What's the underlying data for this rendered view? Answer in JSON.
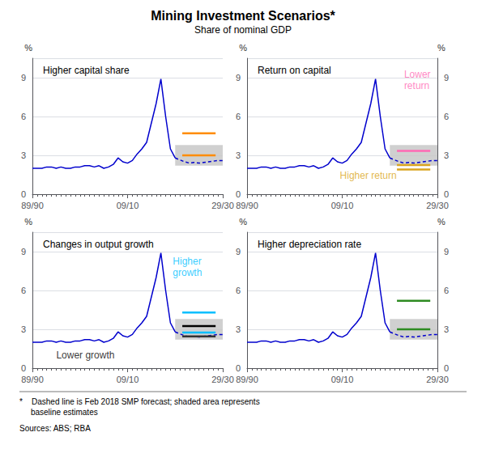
{
  "title": "Mining Investment Scenarios*",
  "subtitle": "Share of nominal GDP",
  "footnote": "*    Dashed line is Feb 2018 SMP forecast; shaded area represents\n     baseline estimates",
  "sources": "Sources: ABS; RBA",
  "chart_data": [
    {
      "type": "line",
      "title": "Higher capital share",
      "x": [
        0,
        1,
        2,
        3,
        4,
        5,
        6,
        7,
        8,
        9,
        10,
        11,
        12,
        13,
        14,
        15,
        16,
        17,
        18,
        19,
        20,
        21,
        22,
        23,
        24,
        25,
        26,
        27,
        28,
        29,
        30,
        31,
        32,
        33,
        34,
        35,
        36,
        37,
        38,
        39,
        40
      ],
      "series": [
        {
          "color": "#0000CD",
          "line_style": "solid",
          "values": [
            2.0,
            2.0,
            2.0,
            2.1,
            2.1,
            2.0,
            2.1,
            2.0,
            2.0,
            2.1,
            2.1,
            2.2,
            2.2,
            2.1,
            2.2,
            2.0,
            2.1,
            2.3,
            2.8,
            2.5,
            2.4,
            2.6,
            3.1,
            3.5,
            4.0,
            5.5,
            7.0,
            8.9,
            6.0,
            3.5,
            2.8,
            null,
            null,
            null,
            null,
            null,
            null,
            null,
            null,
            null,
            null
          ]
        },
        {
          "color": "#0000CD",
          "line_style": "dashed",
          "values": [
            null,
            null,
            null,
            null,
            null,
            null,
            null,
            null,
            null,
            null,
            null,
            null,
            null,
            null,
            null,
            null,
            null,
            null,
            null,
            null,
            null,
            null,
            null,
            null,
            null,
            null,
            null,
            null,
            null,
            null,
            2.8,
            2.65,
            2.5,
            2.4,
            2.45,
            2.4,
            2.45,
            2.5,
            2.55,
            2.6,
            2.6
          ]
        }
      ],
      "shade": {
        "x": [
          30,
          40
        ],
        "y": [
          2.2,
          3.8
        ],
        "color": "#c8c8c8"
      },
      "segments": [
        {
          "x": [
            31.5,
            38.5
          ],
          "y": 4.7,
          "color": "#FF8C00"
        },
        {
          "x": [
            31.5,
            38.5
          ],
          "y": 3.0,
          "color": "#FF8C00"
        }
      ],
      "annotations": [],
      "xlim": [
        0,
        40
      ],
      "xticks": [
        {
          "value": 0,
          "label": "89/90"
        },
        {
          "value": 20,
          "label": "09/10"
        },
        {
          "value": 40,
          "label": "29/30"
        }
      ],
      "ylim": [
        0,
        10.5
      ],
      "yticks": [
        0,
        3,
        6,
        9
      ],
      "ylabel": "%",
      "grid": true
    },
    {
      "type": "line",
      "title": "Return on capital",
      "x": [
        0,
        1,
        2,
        3,
        4,
        5,
        6,
        7,
        8,
        9,
        10,
        11,
        12,
        13,
        14,
        15,
        16,
        17,
        18,
        19,
        20,
        21,
        22,
        23,
        24,
        25,
        26,
        27,
        28,
        29,
        30,
        31,
        32,
        33,
        34,
        35,
        36,
        37,
        38,
        39,
        40
      ],
      "series": [
        {
          "color": "#0000CD",
          "line_style": "solid",
          "values": [
            2.0,
            2.0,
            2.0,
            2.1,
            2.1,
            2.0,
            2.1,
            2.0,
            2.0,
            2.1,
            2.1,
            2.2,
            2.2,
            2.1,
            2.2,
            2.0,
            2.1,
            2.3,
            2.8,
            2.5,
            2.4,
            2.6,
            3.1,
            3.5,
            4.0,
            5.5,
            7.0,
            8.9,
            6.0,
            3.5,
            2.8,
            null,
            null,
            null,
            null,
            null,
            null,
            null,
            null,
            null,
            null
          ]
        },
        {
          "color": "#0000CD",
          "line_style": "dashed",
          "values": [
            null,
            null,
            null,
            null,
            null,
            null,
            null,
            null,
            null,
            null,
            null,
            null,
            null,
            null,
            null,
            null,
            null,
            null,
            null,
            null,
            null,
            null,
            null,
            null,
            null,
            null,
            null,
            null,
            null,
            null,
            2.8,
            2.65,
            2.5,
            2.4,
            2.45,
            2.4,
            2.45,
            2.5,
            2.55,
            2.6,
            2.6
          ]
        }
      ],
      "shade": {
        "x": [
          30,
          40
        ],
        "y": [
          2.2,
          3.8
        ],
        "color": "#c8c8c8"
      },
      "segments": [
        {
          "x": [
            31.5,
            38.5
          ],
          "y": 3.35,
          "color": "#FF69B4"
        },
        {
          "x": [
            31.5,
            38.5
          ],
          "y": 2.25,
          "color": "#DAA520"
        },
        {
          "x": [
            31.5,
            38.5
          ],
          "y": 1.9,
          "color": "#DAA520"
        }
      ],
      "annotations": [
        {
          "text": "Lower\nreturn",
          "x": 33.0,
          "y": 8.8,
          "color": "#FF69B4"
        },
        {
          "text": "Higher return",
          "x": 19.5,
          "y": 1.45,
          "color": "#DAA520"
        }
      ],
      "xlim": [
        0,
        40
      ],
      "xticks": [
        {
          "value": 0,
          "label": "89/90"
        },
        {
          "value": 20,
          "label": "09/10"
        },
        {
          "value": 40,
          "label": "29/30"
        }
      ],
      "ylim": [
        0,
        10.5
      ],
      "yticks": [
        0,
        3,
        6,
        9
      ],
      "ylabel": "%",
      "y2lim": [
        0,
        10.5
      ],
      "y2ticks": [
        0,
        3,
        6,
        9
      ],
      "y2label": "%",
      "grid": true
    },
    {
      "type": "line",
      "title": "Changes in output growth",
      "x": [
        0,
        1,
        2,
        3,
        4,
        5,
        6,
        7,
        8,
        9,
        10,
        11,
        12,
        13,
        14,
        15,
        16,
        17,
        18,
        19,
        20,
        21,
        22,
        23,
        24,
        25,
        26,
        27,
        28,
        29,
        30,
        31,
        32,
        33,
        34,
        35,
        36,
        37,
        38,
        39,
        40
      ],
      "series": [
        {
          "color": "#0000CD",
          "line_style": "solid",
          "values": [
            2.0,
            2.0,
            2.0,
            2.1,
            2.1,
            2.0,
            2.1,
            2.0,
            2.0,
            2.1,
            2.1,
            2.2,
            2.2,
            2.1,
            2.2,
            2.0,
            2.1,
            2.3,
            2.8,
            2.5,
            2.4,
            2.6,
            3.1,
            3.5,
            4.0,
            5.5,
            7.0,
            8.9,
            6.0,
            3.5,
            2.8,
            null,
            null,
            null,
            null,
            null,
            null,
            null,
            null,
            null,
            null
          ]
        },
        {
          "color": "#0000CD",
          "line_style": "dashed",
          "values": [
            null,
            null,
            null,
            null,
            null,
            null,
            null,
            null,
            null,
            null,
            null,
            null,
            null,
            null,
            null,
            null,
            null,
            null,
            null,
            null,
            null,
            null,
            null,
            null,
            null,
            null,
            null,
            null,
            null,
            null,
            2.8,
            2.65,
            2.5,
            2.4,
            2.45,
            2.4,
            2.45,
            2.5,
            2.55,
            2.6,
            2.6
          ]
        }
      ],
      "shade": {
        "x": [
          30,
          40
        ],
        "y": [
          2.2,
          3.8
        ],
        "color": "#c8c8c8"
      },
      "segments": [
        {
          "x": [
            31.5,
            38.5
          ],
          "y": 4.3,
          "color": "#00BFFF"
        },
        {
          "x": [
            31.5,
            38.5
          ],
          "y": 3.25,
          "color": "#000000"
        },
        {
          "x": [
            31.5,
            38.5
          ],
          "y": 2.75,
          "color": "#00BFFF"
        },
        {
          "x": [
            31.5,
            38.5
          ],
          "y": 2.45,
          "color": "#333333"
        }
      ],
      "annotations": [
        {
          "text": "Higher\ngrowth",
          "x": 29.5,
          "y": 7.8,
          "color": "#00BFFF"
        },
        {
          "text": "Lower growth",
          "x": 5.0,
          "y": 1.0,
          "color": "#000000"
        }
      ],
      "xlim": [
        0,
        40
      ],
      "xticks": [
        {
          "value": 0,
          "label": "89/90"
        },
        {
          "value": 20,
          "label": "09/10"
        },
        {
          "value": 40,
          "label": "29/30"
        }
      ],
      "ylim": [
        0,
        10.5
      ],
      "yticks": [
        0,
        3,
        6,
        9
      ],
      "ylabel": "%",
      "grid": true
    },
    {
      "type": "line",
      "title": "Higher depreciation rate",
      "x": [
        0,
        1,
        2,
        3,
        4,
        5,
        6,
        7,
        8,
        9,
        10,
        11,
        12,
        13,
        14,
        15,
        16,
        17,
        18,
        19,
        20,
        21,
        22,
        23,
        24,
        25,
        26,
        27,
        28,
        29,
        30,
        31,
        32,
        33,
        34,
        35,
        36,
        37,
        38,
        39,
        40
      ],
      "series": [
        {
          "color": "#0000CD",
          "line_style": "solid",
          "values": [
            2.0,
            2.0,
            2.0,
            2.1,
            2.1,
            2.0,
            2.1,
            2.0,
            2.0,
            2.1,
            2.1,
            2.2,
            2.2,
            2.1,
            2.2,
            2.0,
            2.1,
            2.3,
            2.8,
            2.5,
            2.4,
            2.6,
            3.1,
            3.5,
            4.0,
            5.5,
            7.0,
            8.9,
            6.0,
            3.5,
            2.8,
            null,
            null,
            null,
            null,
            null,
            null,
            null,
            null,
            null,
            null
          ]
        },
        {
          "color": "#0000CD",
          "line_style": "dashed",
          "values": [
            null,
            null,
            null,
            null,
            null,
            null,
            null,
            null,
            null,
            null,
            null,
            null,
            null,
            null,
            null,
            null,
            null,
            null,
            null,
            null,
            null,
            null,
            null,
            null,
            null,
            null,
            null,
            null,
            null,
            null,
            2.8,
            2.65,
            2.5,
            2.4,
            2.45,
            2.4,
            2.45,
            2.5,
            2.55,
            2.6,
            2.6
          ]
        }
      ],
      "shade": {
        "x": [
          30,
          40
        ],
        "y": [
          2.2,
          3.8
        ],
        "color": "#c8c8c8"
      },
      "segments": [
        {
          "x": [
            31.5,
            38.5
          ],
          "y": 5.2,
          "color": "#2E8B22"
        },
        {
          "x": [
            31.5,
            38.5
          ],
          "y": 3.0,
          "color": "#2E8B22"
        }
      ],
      "annotations": [],
      "xlim": [
        0,
        40
      ],
      "xticks": [
        {
          "value": 0,
          "label": "89/90"
        },
        {
          "value": 20,
          "label": "09/10"
        },
        {
          "value": 40,
          "label": "29/30"
        }
      ],
      "ylim": [
        0,
        10.5
      ],
      "yticks": [
        0,
        3,
        6,
        9
      ],
      "ylabel": "%",
      "y2lim": [
        0,
        10.5
      ],
      "y2ticks": [
        0,
        3,
        6,
        9
      ],
      "y2label": "%",
      "grid": true
    }
  ]
}
